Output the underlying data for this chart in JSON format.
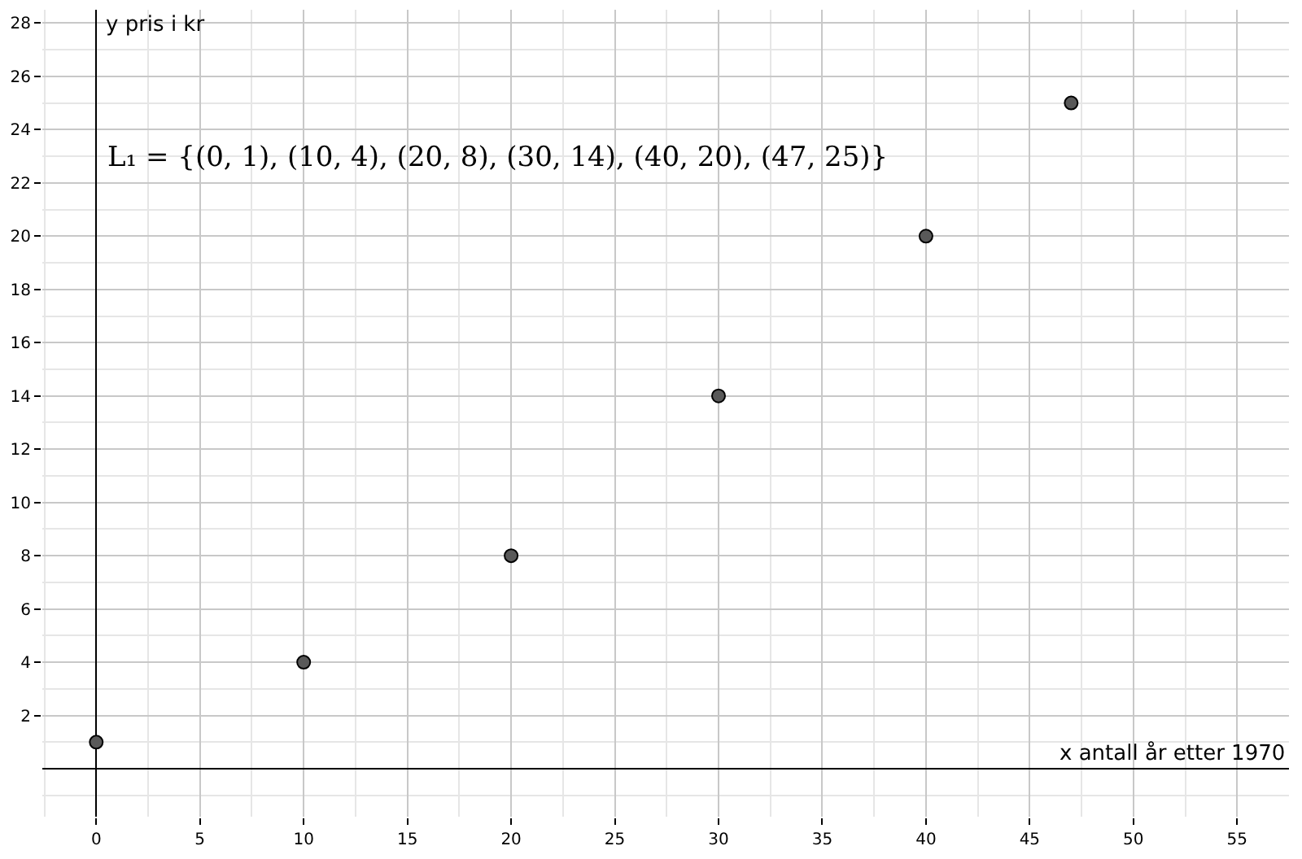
{
  "chart_data": {
    "type": "scatter",
    "xlabel": "x antall år etter 1970",
    "ylabel": "y pris i kr",
    "x": [
      0,
      10,
      20,
      30,
      40,
      47
    ],
    "values": [
      1,
      4,
      8,
      14,
      20,
      25
    ],
    "color": "#595959",
    "marker": "circle",
    "xlim": [
      -2.6,
      57.5
    ],
    "ylim": [
      -1.8,
      28.5
    ],
    "xticks": [
      0,
      5,
      10,
      15,
      20,
      25,
      30,
      35,
      40,
      45,
      50,
      55
    ],
    "yticks": [
      2,
      4,
      6,
      8,
      10,
      12,
      14,
      16,
      18,
      20,
      22,
      24,
      26,
      28
    ],
    "grid": true,
    "annotations": [
      "L₁ = {(0, 1), (10, 4), (20, 8), (30, 14), (40, 20), (47, 25)}"
    ]
  }
}
